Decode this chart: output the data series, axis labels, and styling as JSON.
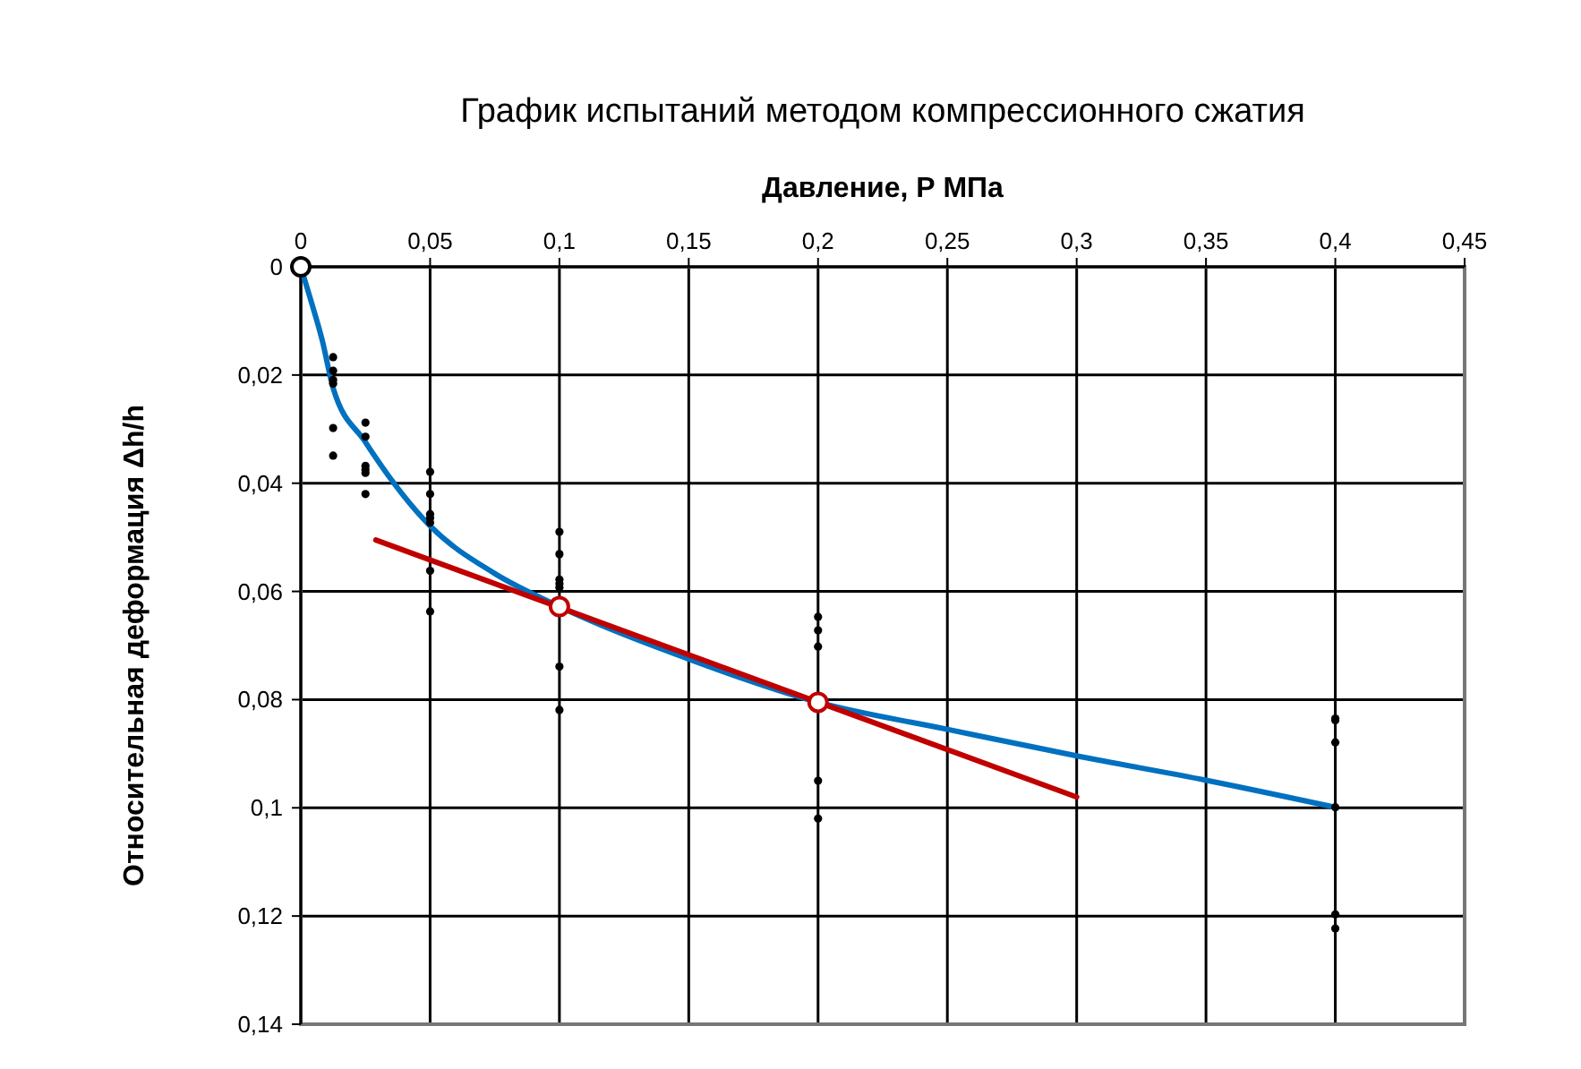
{
  "chart_data": {
    "type": "scatter",
    "title": "График испытаний методом компрессионного сжатия",
    "xlabel": "Давление, Р МПа",
    "ylabel": "Относительная деформация Δh/h",
    "xlim": [
      0,
      0.45
    ],
    "xticks": [
      0,
      {
        "value": 0.05,
        "label": "0,05"
      },
      {
        "value": 0.1,
        "label": "0,1"
      },
      {
        "value": 0.15,
        "label": "0,15"
      },
      {
        "value": 0.2,
        "label": "0,2"
      },
      {
        "value": 0.25,
        "label": "0,25"
      },
      {
        "value": 0.3,
        "label": "0,3"
      },
      {
        "value": 0.35,
        "label": "0,35"
      },
      {
        "value": 0.4,
        "label": "0,4"
      },
      {
        "value": 0.45,
        "label": "0,45"
      }
    ],
    "ylim": [
      0.14,
      0
    ],
    "yticks": [
      0,
      {
        "value": 0.02,
        "label": "0,02"
      },
      {
        "value": 0.04,
        "label": "0,04"
      },
      {
        "value": 0.06,
        "label": "0,06"
      },
      {
        "value": 0.08,
        "label": "0,08"
      },
      {
        "value": 0.1,
        "label": "0,1"
      },
      {
        "value": 0.12,
        "label": "0,12"
      },
      {
        "value": 0.14,
        "label": "0,14"
      }
    ],
    "grid": true,
    "series": [
      {
        "marker": "circle",
        "color": "#000000",
        "x": [
          0.0125,
          0.0125,
          0.0125,
          0.0125,
          0.0125,
          0.0125,
          0.025,
          0.025,
          0.025,
          0.025,
          0.025,
          0.025,
          0.05,
          0.05,
          0.05,
          0.05,
          0.05,
          0.05,
          0.05,
          0.1,
          0.1,
          0.1,
          0.1,
          0.1,
          0.1,
          0.1,
          0.2,
          0.2,
          0.2,
          0.2,
          0.2,
          0.4,
          0.4,
          0.4,
          0.4,
          0.4,
          0.4
        ],
        "values": [
          0.0167,
          0.0192,
          0.0209,
          0.0216,
          0.0298,
          0.0349,
          0.0288,
          0.0314,
          0.0368,
          0.0375,
          0.0381,
          0.042,
          0.0379,
          0.042,
          0.0457,
          0.0464,
          0.0473,
          0.0562,
          0.0637,
          0.049,
          0.0531,
          0.0578,
          0.0586,
          0.0593,
          0.0739,
          0.0819,
          0.0647,
          0.0672,
          0.0702,
          0.095,
          0.102,
          0.0835,
          0.0838,
          0.0879,
          0.0999,
          0.1197,
          0.1223
        ]
      },
      {
        "type": "line",
        "marker": "none",
        "color": "#0070c0",
        "x": [
          0,
          0.0037,
          0.0083,
          0.0125,
          0.025,
          0.05,
          0.075,
          0.1,
          0.15,
          0.2,
          0.25,
          0.3,
          0.35,
          0.4
        ],
        "values": [
          0,
          0.0059,
          0.0136,
          0.0224,
          0.0324,
          0.0479,
          0.0567,
          0.0628,
          0.0725,
          0.0805,
          0.0855,
          0.0904,
          0.0949,
          0.0999
        ]
      },
      {
        "type": "line",
        "marker": "none",
        "color": "#c00000",
        "x": [
          0.029,
          0.3
        ],
        "values": [
          0.0505,
          0.098
        ]
      },
      {
        "type": "scatter",
        "marker": "circle",
        "color": "#c00000",
        "x": [
          0.1,
          0.2
        ],
        "values": [
          0.0628,
          0.0805
        ]
      },
      {
        "type": "scatter",
        "marker": "circle",
        "color": "#000000",
        "x": [
          0
        ],
        "values": [
          0
        ]
      }
    ]
  }
}
